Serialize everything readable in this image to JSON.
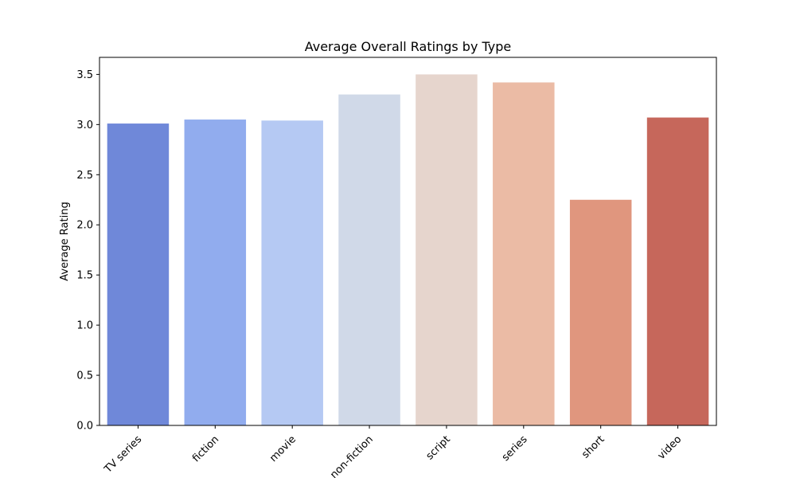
{
  "chart_data": {
    "type": "bar",
    "title": "Average Overall Ratings by Type",
    "xlabel": "",
    "ylabel": "Average Rating",
    "categories": [
      "TV series",
      "fiction",
      "movie",
      "non-fiction",
      "script",
      "series",
      "short",
      "video"
    ],
    "values": [
      3.01,
      3.05,
      3.04,
      3.3,
      3.5,
      3.42,
      2.25,
      3.07
    ],
    "ylim": [
      0,
      3.67
    ],
    "yticks": [
      0.0,
      0.5,
      1.0,
      1.5,
      2.0,
      2.5,
      3.0,
      3.5
    ],
    "ytick_labels": [
      "0.0",
      "0.5",
      "1.0",
      "1.5",
      "2.0",
      "2.5",
      "3.0",
      "3.5"
    ],
    "colors": [
      "#6f88d9",
      "#91acee",
      "#b5c9f3",
      "#d0d9e8",
      "#e6d5cd",
      "#ebbba5",
      "#e0967e",
      "#c6675b"
    ],
    "grid": false,
    "legend": "none",
    "xtick_rotation": "45deg"
  }
}
